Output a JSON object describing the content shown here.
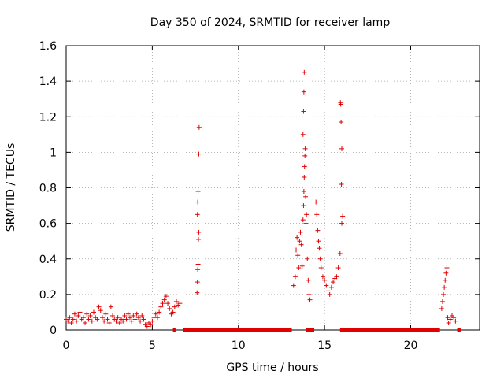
{
  "chart_data": {
    "type": "scatter",
    "title": "Day 350 of 2024, SRMTID for receiver lamp",
    "xlabel": "GPS time / hours",
    "ylabel": "SRMTID / TECUs",
    "xlim": [
      0,
      24
    ],
    "ylim": [
      0,
      1.6
    ],
    "xticks": [
      0,
      5,
      10,
      15,
      20
    ],
    "xtick_labels": [
      "0",
      "5",
      "10",
      "15",
      "20"
    ],
    "yticks": [
      0,
      0.2,
      0.4,
      0.6,
      0.8,
      1,
      1.2,
      1.4,
      1.6
    ],
    "ytick_labels": [
      "0",
      "0.2",
      "0.4",
      "0.6",
      "0.8",
      "1",
      "1.2",
      "1.4",
      "1.6"
    ],
    "grid": true,
    "marker": "+",
    "color": "#e00000",
    "series": [
      {
        "name": "SRMTID",
        "points": [
          [
            0.0,
            0.06
          ],
          [
            0.1,
            0.05
          ],
          [
            0.2,
            0.07
          ],
          [
            0.3,
            0.04
          ],
          [
            0.4,
            0.06
          ],
          [
            0.5,
            0.09
          ],
          [
            0.6,
            0.05
          ],
          [
            0.7,
            0.08
          ],
          [
            0.8,
            0.1
          ],
          [
            0.9,
            0.06
          ],
          [
            1.0,
            0.07
          ],
          [
            1.1,
            0.04
          ],
          [
            1.2,
            0.09
          ],
          [
            1.3,
            0.06
          ],
          [
            1.4,
            0.08
          ],
          [
            1.5,
            0.05
          ],
          [
            1.6,
            0.1
          ],
          [
            1.7,
            0.07
          ],
          [
            1.8,
            0.06
          ],
          [
            1.9,
            0.13
          ],
          [
            2.0,
            0.11
          ],
          [
            2.1,
            0.07
          ],
          [
            2.2,
            0.05
          ],
          [
            2.3,
            0.09
          ],
          [
            2.4,
            0.06
          ],
          [
            2.5,
            0.04
          ],
          [
            2.6,
            0.13
          ],
          [
            2.7,
            0.08
          ],
          [
            2.8,
            0.06
          ],
          [
            2.9,
            0.05
          ],
          [
            3.0,
            0.07
          ],
          [
            3.1,
            0.04
          ],
          [
            3.2,
            0.06
          ],
          [
            3.3,
            0.05
          ],
          [
            3.4,
            0.08
          ],
          [
            3.5,
            0.06
          ],
          [
            3.6,
            0.09
          ],
          [
            3.7,
            0.07
          ],
          [
            3.8,
            0.05
          ],
          [
            3.9,
            0.08
          ],
          [
            4.0,
            0.06
          ],
          [
            4.1,
            0.09
          ],
          [
            4.2,
            0.07
          ],
          [
            4.3,
            0.05
          ],
          [
            4.4,
            0.08
          ],
          [
            4.5,
            0.06
          ],
          [
            4.6,
            0.03
          ],
          [
            4.7,
            0.02
          ],
          [
            4.8,
            0.04
          ],
          [
            4.9,
            0.03
          ],
          [
            5.0,
            0.05
          ],
          [
            5.1,
            0.07
          ],
          [
            5.2,
            0.09
          ],
          [
            5.3,
            0.07
          ],
          [
            5.4,
            0.1
          ],
          [
            5.5,
            0.13
          ],
          [
            5.6,
            0.15
          ],
          [
            5.7,
            0.17
          ],
          [
            5.8,
            0.19
          ],
          [
            5.9,
            0.15
          ],
          [
            6.0,
            0.12
          ],
          [
            6.1,
            0.09
          ],
          [
            6.2,
            0.1
          ],
          [
            6.3,
            0.13
          ],
          [
            6.4,
            0.16
          ],
          [
            6.5,
            0.14
          ],
          [
            6.6,
            0.15
          ],
          [
            7.6,
            0.21
          ],
          [
            7.62,
            0.27
          ],
          [
            7.64,
            0.34
          ],
          [
            7.66,
            0.37
          ],
          [
            7.68,
            0.51
          ],
          [
            7.7,
            0.55
          ],
          [
            7.62,
            0.65
          ],
          [
            7.64,
            0.72
          ],
          [
            7.66,
            0.78
          ],
          [
            7.7,
            0.99
          ],
          [
            7.72,
            1.14
          ],
          [
            13.2,
            0.25
          ],
          [
            13.3,
            0.3
          ],
          [
            13.35,
            0.45
          ],
          [
            13.4,
            0.52
          ],
          [
            13.45,
            0.42
          ],
          [
            13.5,
            0.35
          ],
          [
            13.55,
            0.5
          ],
          [
            13.6,
            0.55
          ],
          [
            13.65,
            0.48
          ],
          [
            13.7,
            0.36
          ],
          [
            13.75,
            0.62
          ],
          [
            13.78,
            0.7
          ],
          [
            13.8,
            0.78
          ],
          [
            13.82,
            0.86
          ],
          [
            13.84,
            0.92
          ],
          [
            13.86,
            0.98
          ],
          [
            13.88,
            1.02
          ],
          [
            13.9,
            0.75
          ],
          [
            13.92,
            0.6
          ],
          [
            13.95,
            0.65
          ],
          [
            13.75,
            1.1
          ],
          [
            13.78,
            1.23
          ],
          [
            13.8,
            1.34
          ],
          [
            13.82,
            1.45
          ],
          [
            14.0,
            0.4
          ],
          [
            14.05,
            0.28
          ],
          [
            14.1,
            0.2
          ],
          [
            14.15,
            0.17
          ],
          [
            14.5,
            0.72
          ],
          [
            14.55,
            0.65
          ],
          [
            14.6,
            0.56
          ],
          [
            14.65,
            0.5
          ],
          [
            14.7,
            0.46
          ],
          [
            14.75,
            0.4
          ],
          [
            14.8,
            0.35
          ],
          [
            14.9,
            0.3
          ],
          [
            15.0,
            0.28
          ],
          [
            15.1,
            0.25
          ],
          [
            15.2,
            0.22
          ],
          [
            15.3,
            0.2
          ],
          [
            15.4,
            0.24
          ],
          [
            15.5,
            0.27
          ],
          [
            15.6,
            0.29
          ],
          [
            15.7,
            0.3
          ],
          [
            15.8,
            0.35
          ],
          [
            15.9,
            0.43
          ],
          [
            16.0,
            0.6
          ],
          [
            16.05,
            0.64
          ],
          [
            15.98,
            0.82
          ],
          [
            16.0,
            1.02
          ],
          [
            15.96,
            1.17
          ],
          [
            15.94,
            1.27
          ],
          [
            15.92,
            1.28
          ],
          [
            21.8,
            0.12
          ],
          [
            21.85,
            0.16
          ],
          [
            21.9,
            0.2
          ],
          [
            21.95,
            0.24
          ],
          [
            22.0,
            0.28
          ],
          [
            22.05,
            0.32
          ],
          [
            22.1,
            0.35
          ],
          [
            22.15,
            0.07
          ],
          [
            22.2,
            0.04
          ],
          [
            22.3,
            0.06
          ],
          [
            22.4,
            0.08
          ],
          [
            22.5,
            0.07
          ],
          [
            22.6,
            0.05
          ]
        ]
      }
    ],
    "zero_segments": [
      [
        6.2,
        6.35
      ],
      [
        6.8,
        13.1
      ],
      [
        13.9,
        14.4
      ],
      [
        15.9,
        21.7
      ],
      [
        22.7,
        22.9
      ]
    ]
  }
}
